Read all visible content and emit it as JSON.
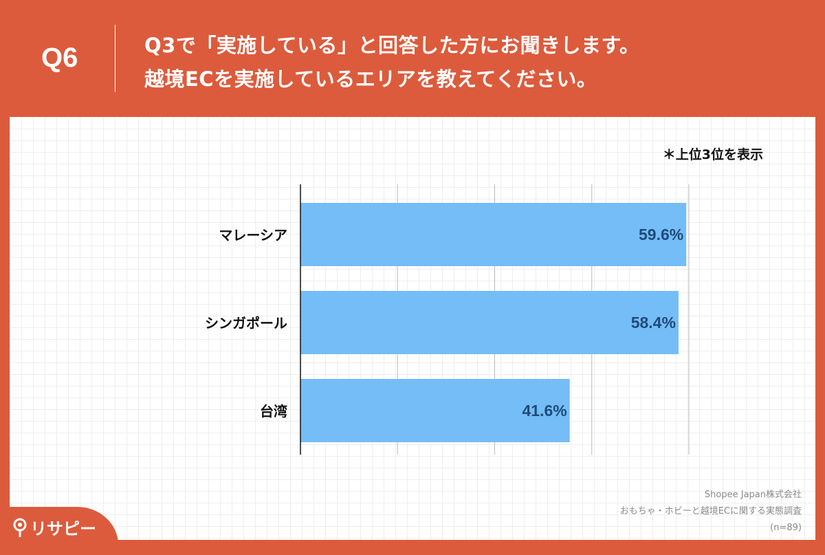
{
  "header": {
    "question_number": "Q6",
    "title_line1": "Q3で「実施している」と回答した方にお聞きします。",
    "title_line2": "越境ECを実施しているエリアを教えてください。"
  },
  "note": "＊上位3位を表示",
  "source": {
    "company": "Shopee Japan株式会社",
    "survey": "おもちゃ・ホビーと越境ECに関する実態調査",
    "sample": "(n=89)"
  },
  "logo": {
    "text": "リサピー"
  },
  "colors": {
    "background": "#dc5b3c",
    "bar": "#74bdf7",
    "label": "#1f4a7a"
  },
  "chart_data": {
    "type": "bar",
    "orientation": "horizontal",
    "categories": [
      "マレーシア",
      "シンガポール",
      "台湾"
    ],
    "values": [
      59.6,
      58.4,
      41.6
    ],
    "value_labels": [
      "59.6%",
      "58.4%",
      "41.6%"
    ],
    "xlim": [
      0,
      60
    ],
    "grid": true,
    "unit": "%"
  }
}
